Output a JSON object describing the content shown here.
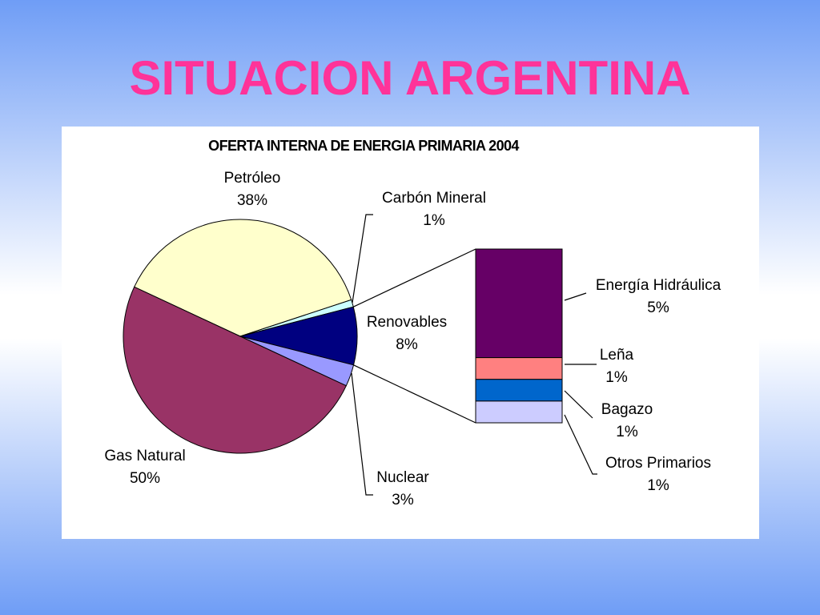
{
  "slide_title": "SITUACION ARGENTINA",
  "chart_data": {
    "type": "pie",
    "title": "OFERTA INTERNA DE ENERGIA PRIMARIA 2004",
    "categories": [
      "Petróleo",
      "Carbón Mineral",
      "Renovables",
      "Nuclear",
      "Gas Natural"
    ],
    "values": [
      38,
      1,
      8,
      3,
      50
    ],
    "value_labels": [
      "38%",
      "1%",
      "8%",
      "3%",
      "50%"
    ],
    "colors": [
      "#FFFFCC",
      "#CCFFFF",
      "#000080",
      "#9999FF",
      "#993366"
    ],
    "breakdown": {
      "type": "bar",
      "categories": [
        "Energía Hidráulica",
        "Leña",
        "Bagazo",
        "Otros Primarios"
      ],
      "values": [
        5,
        1,
        1,
        1
      ],
      "value_labels": [
        "5%",
        "1%",
        "1%",
        "1%"
      ],
      "colors": [
        "#660066",
        "#FF8080",
        "#0066CC",
        "#CCCCFF"
      ]
    }
  }
}
